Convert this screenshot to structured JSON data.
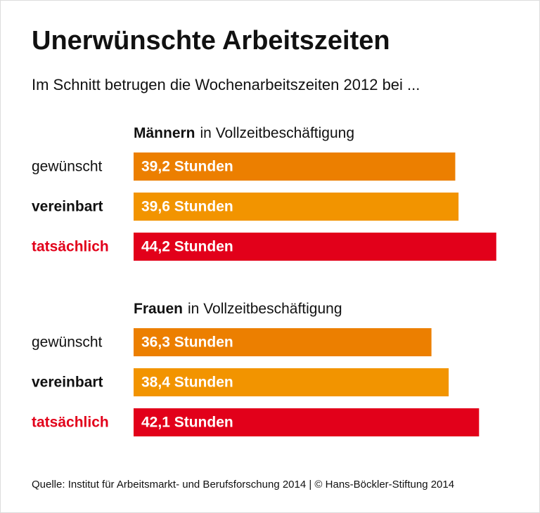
{
  "header": {
    "title": "Unerwünschte Arbeitszeiten",
    "subtitle": "Im Schnitt betrugen die  Wochenarbeitszeiten 2012 bei ..."
  },
  "chart_data": [
    {
      "type": "bar",
      "orientation": "horizontal",
      "group_label": "Männern",
      "group_label_suffix": "in Vollzeitbeschäftigung",
      "categories": [
        "gewünscht",
        "vereinbart",
        "tatsächlich"
      ],
      "values": [
        39.2,
        39.6,
        44.2
      ],
      "value_labels": [
        "39,2 Stunden",
        "39,6 Stunden",
        "44,2 Stunden"
      ],
      "colors": [
        "#ec7f00",
        "#f29400",
        "#e2001a"
      ],
      "label_colors": [
        "#111111",
        "#111111",
        "#e2001a"
      ]
    },
    {
      "type": "bar",
      "orientation": "horizontal",
      "group_label": "Frauen",
      "group_label_suffix": "in Vollzeitbeschäftigung",
      "categories": [
        "gewünscht",
        "vereinbart",
        "tatsächlich"
      ],
      "values": [
        36.3,
        38.4,
        42.1
      ],
      "value_labels": [
        "36,3 Stunden",
        "38,4 Stunden",
        "42,1 Stunden"
      ],
      "colors": [
        "#ec7f00",
        "#f29400",
        "#e2001a"
      ],
      "label_colors": [
        "#111111",
        "#111111",
        "#e2001a"
      ]
    }
  ],
  "footer": {
    "source": "Quelle: Institut für Arbeitsmarkt- und Berufsforschung 2014 | © Hans-Böckler-Stiftung 2014"
  }
}
